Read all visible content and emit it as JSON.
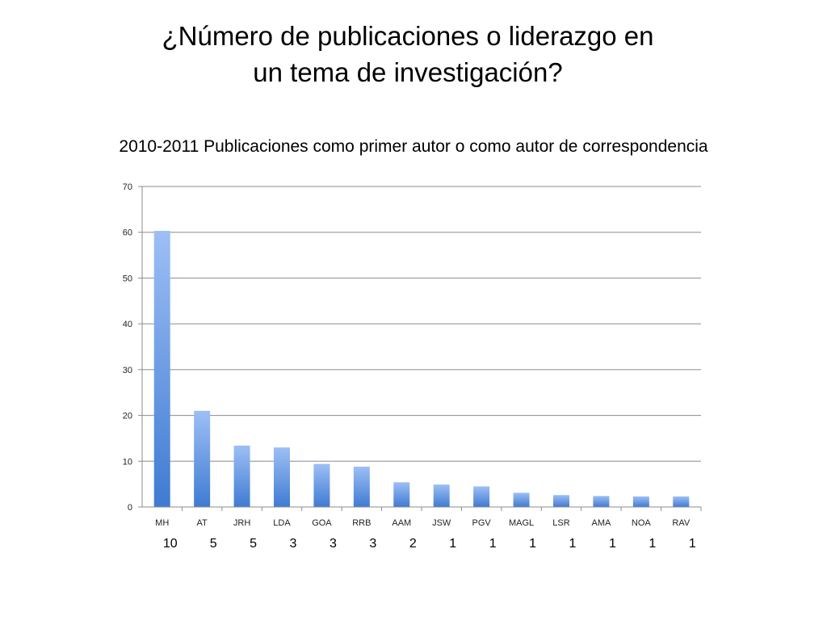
{
  "slide": {
    "title_line1": "¿Número de publicaciones o liderazgo en",
    "title_line2": "un tema de investigación?",
    "subtitle": "2010-2011 Publicaciones como primer autor o como autor de correspondencia"
  },
  "chart_data": {
    "type": "bar",
    "title": "",
    "xlabel": "",
    "ylabel": "",
    "categories": [
      "MH",
      "AT",
      "JRH",
      "LDA",
      "GOA",
      "RRB",
      "AAM",
      "JSW",
      "PGV",
      "MAGL",
      "LSR",
      "AMA",
      "NOA",
      "RAV"
    ],
    "values": [
      60.3,
      21,
      13.4,
      13,
      9.4,
      8.8,
      5.4,
      4.9,
      4.5,
      3.1,
      2.6,
      2.4,
      2.3,
      2.3
    ],
    "ylim": [
      0,
      70
    ],
    "yticks": [
      0,
      10,
      20,
      30,
      40,
      50,
      60,
      70
    ],
    "grid": true,
    "bar_color_top": "#9dbff5",
    "bar_color_bottom": "#3f7bd2",
    "bottom_numbers": [
      "10",
      "5",
      "5",
      "3",
      "3",
      "3",
      "2",
      "1",
      "1",
      "1",
      "1",
      "1",
      "1",
      "1"
    ]
  }
}
